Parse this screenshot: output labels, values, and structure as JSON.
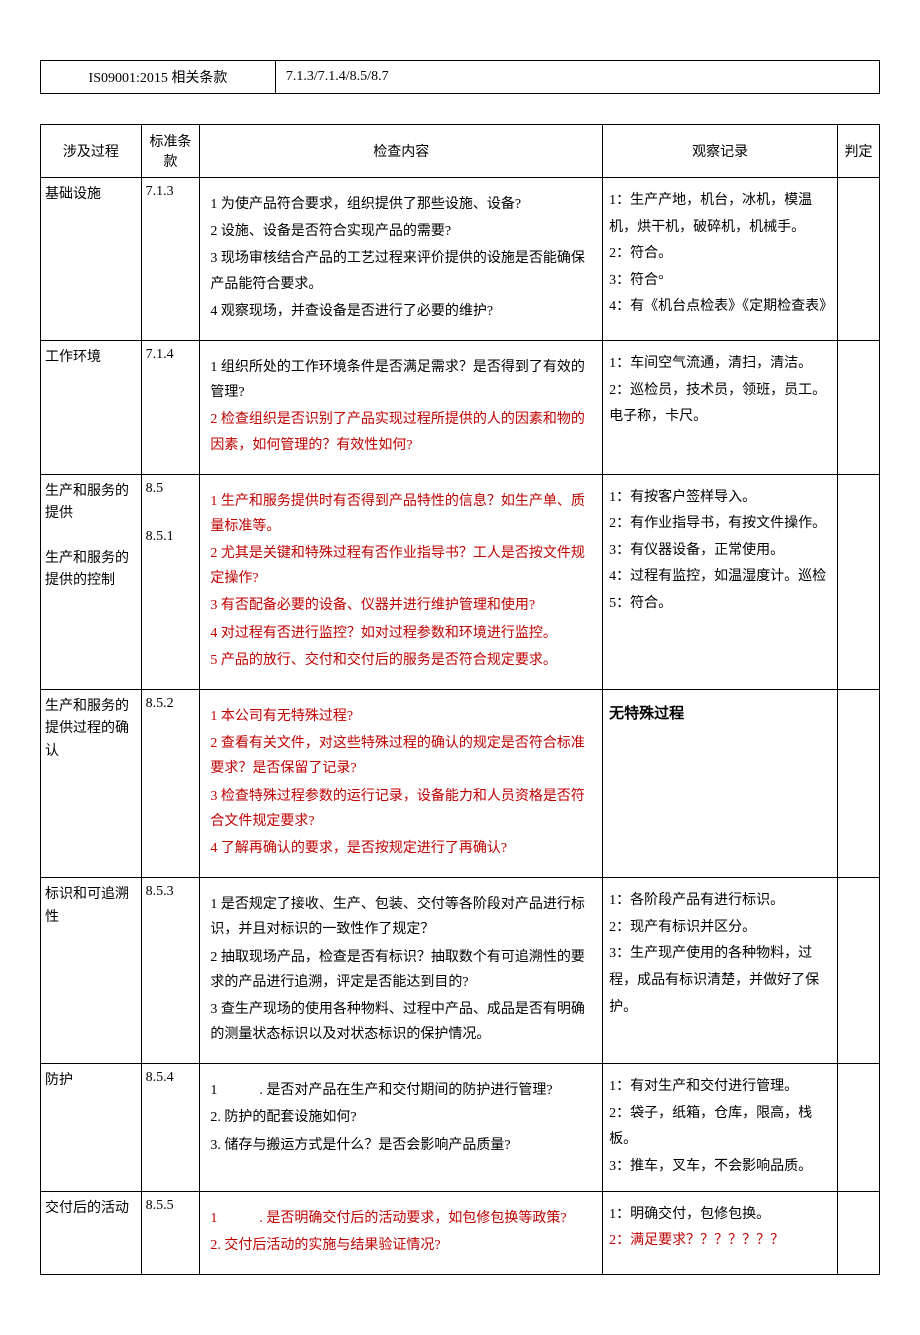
{
  "topRow": {
    "label": "IS09001:2015 相关条款",
    "value": "7.1.3/7.1.4/8.5/8.7"
  },
  "headers": {
    "process": "涉及过程",
    "clause": "标准条款",
    "check": "检查内容",
    "obs": "观察记录",
    "judge": "判定"
  },
  "rows": [
    {
      "process": "基础设施",
      "clause": "7.1.3",
      "check": [
        {
          "t": "1 为使产品符合要求，组织提供了那些设施、设备?"
        },
        {
          "t": "2 设施、设备是否符合实现产品的需要?"
        },
        {
          "t": "3 现场审核结合产品的工艺过程来评价提供的设施是否能确保产品能符合要求。"
        },
        {
          "t": "4 观察现场，并查设备是否进行了必要的维护?"
        }
      ],
      "obs": [
        {
          "t": "1：生产产地，机台，冰机，模温机，烘干机，破碎机，机械手。"
        },
        {
          "t": "2：符合。"
        },
        {
          "t": "3：符合°"
        },
        {
          "t": "4：有《机台点检表》《定期检查表》"
        }
      ]
    },
    {
      "process": "工作环境",
      "clause": "7.1.4",
      "check": [
        {
          "t": "1 组织所处的工作环境条件是否满足需求？是否得到了有效的管理?"
        },
        {
          "t": "2 检查组织是否识别了产品实现过程所提供的人的因素和物的因素，如何管理的？有效性如何?",
          "red": true
        }
      ],
      "obs": [
        {
          "t": "1：车间空气流通，清扫，清洁。"
        },
        {
          "t": "2：巡检员，技术员，领班，员工。电子称，卡尺。"
        }
      ]
    },
    {
      "process": "生产和服务的提供\n\n生产和服务的提供的控制",
      "clause": "8.5\n\n\n8.5.1",
      "check": [
        {
          "t": "1 生产和服务提供时有否得到产品特性的信息？如生产单、质量标准等。",
          "red": true
        },
        {
          "t": "2 尤其是关键和特殊过程有否作业指导书？工人是否按文件规定操作?",
          "red": true
        },
        {
          "t": "3 有否配备必要的设备、仪器并进行维护管理和使用?",
          "red": true
        },
        {
          "t": "4 对过程有否进行监控？如对过程参数和环境进行监控。",
          "red": true
        },
        {
          "t": "5 产品的放行、交付和交付后的服务是否符合规定要求。",
          "red": true
        }
      ],
      "obs": [
        {
          "t": "1：有按客户签样导入。"
        },
        {
          "t": "2：有作业指导书，有按文件操作。"
        },
        {
          "t": "3：有仪器设备，正常使用。"
        },
        {
          "t": "4：过程有监控，如温湿度计。巡检"
        },
        {
          "t": "5：符合。"
        }
      ]
    },
    {
      "process": "生产和服务的提供过程的确认",
      "clause": "8.5.2",
      "check": [
        {
          "t": "1 本公司有无特殊过程?",
          "red": true
        },
        {
          "t": "2 查看有关文件，对这些特殊过程的确认的规定是否符合标准要求？是否保留了记录?",
          "red": true
        },
        {
          "t": "3 检查特殊过程参数的运行记录，设备能力和人员资格是否符合文件规定要求?",
          "red": true
        },
        {
          "t": "4 了解再确认的要求，是否按规定进行了再确认?",
          "red": true
        }
      ],
      "obs": [
        {
          "t": "无特殊过程",
          "bold": true
        }
      ]
    },
    {
      "process": "标识和可追溯性",
      "clause": "8.5.3",
      "check": [
        {
          "t": "1 是否规定了接收、生产、包装、交付等各阶段对产品进行标识，并且对标识的一致性作了规定？"
        },
        {
          "t": "2 抽取现场产品，检查是否有标识？抽取数个有可追溯性的要求的产品进行追溯，评定是否能达到目的?"
        },
        {
          "t": "3 查生产现场的使用各种物料、过程中产品、成品是否有明确的测量状态标识以及对状态标识的保护情况。"
        }
      ],
      "obs": [
        {
          "t": "1：各阶段产品有进行标识。"
        },
        {
          "t": "2：现产有标识并区分。"
        },
        {
          "t": "3：生产现产使用的各种物料，过程，成品有标识清楚，并做好了保护。"
        }
      ]
    },
    {
      "process": "防护",
      "clause": "8.5.4",
      "check": [
        {
          "t": "1　　　. 是否对产品在生产和交付期间的防护进行管理?"
        },
        {
          "t": "2. 防护的配套设施如何?"
        },
        {
          "t": "3. 储存与搬运方式是什么？是否会影响产品质量?"
        }
      ],
      "obs": [
        {
          "t": "1：有对生产和交付进行管理。"
        },
        {
          "t": "2：袋子，纸箱，仓库，限高，栈板。"
        },
        {
          "t": "3：推车，叉车，不会影响品质。"
        }
      ]
    },
    {
      "process": "交付后的活动",
      "clause": "8.5.5",
      "check": [
        {
          "t": "1　　　. 是否明确交付后的活动要求，如包修包换等政策?",
          "red": true
        },
        {
          "t": "2. 交付后活动的实施与结果验证情况?",
          "red": true
        }
      ],
      "obs": [
        {
          "t": "1：明确交付，包修包换。"
        },
        {
          "t": "2：满足要求？？？？？？？",
          "red": true
        }
      ]
    }
  ]
}
